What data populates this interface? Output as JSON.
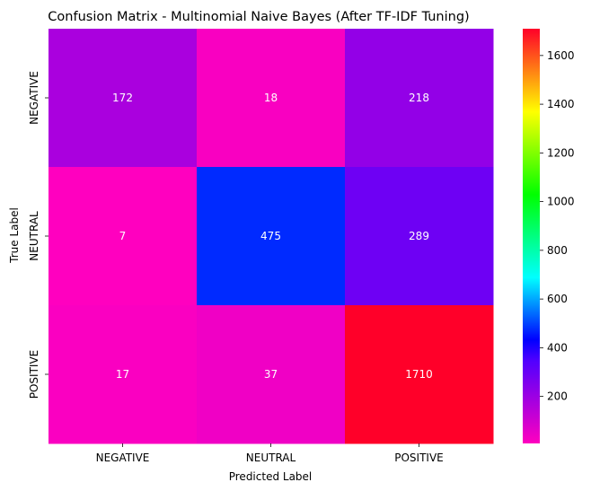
{
  "chart_data": {
    "type": "heatmap",
    "title": "Confusion Matrix - Multinomial Naive Bayes (After TF-IDF Tuning)",
    "xlabel": "Predicted Label",
    "ylabel": "True Label",
    "x_categories": [
      "NEGATIVE",
      "NEUTRAL",
      "POSITIVE"
    ],
    "y_categories": [
      "NEGATIVE",
      "NEUTRAL",
      "POSITIVE"
    ],
    "values": [
      [
        172,
        18,
        218
      ],
      [
        7,
        475,
        289
      ],
      [
        17,
        37,
        1710
      ]
    ],
    "colormap": "gist_rainbow_r",
    "color_range": [
      7,
      1710
    ],
    "colorbar_ticks": [
      200,
      400,
      600,
      800,
      1000,
      1200,
      1400,
      1600
    ],
    "annotation_color": "#ffffff"
  }
}
